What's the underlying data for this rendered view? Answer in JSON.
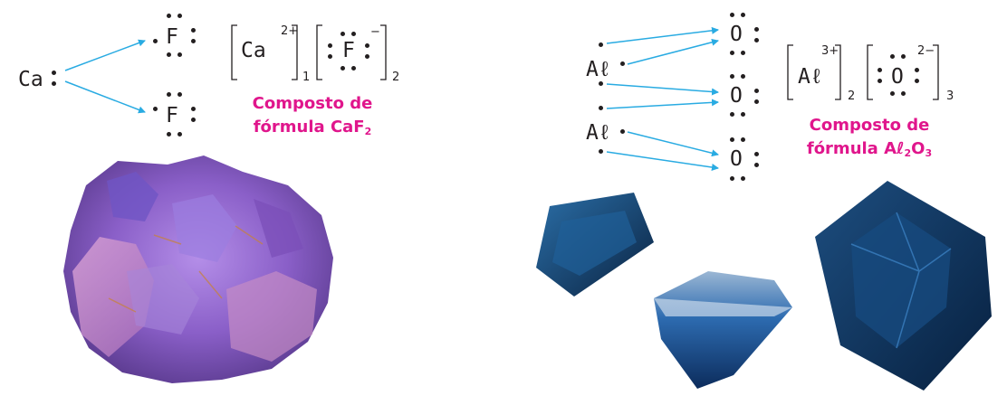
{
  "left": {
    "ca": "Ca",
    "f_top": "F",
    "f_bottom": "F",
    "bracket_ca": "Ca",
    "bracket_ca_charge": "2+",
    "bracket_ca_count": "1",
    "bracket_f": "F",
    "bracket_f_charge": "−",
    "bracket_f_count": "2",
    "caption_line1": "Composto de",
    "caption_line2_prefix": "fórmula CaF",
    "caption_line2_sub": "2",
    "mineral_image": "fluorite-crystal-photo"
  },
  "right": {
    "al_top": "Aℓ",
    "al_bottom": "Aℓ",
    "o_top": "O",
    "o_mid": "O",
    "o_bottom": "O",
    "bracket_al": "Aℓ",
    "bracket_al_charge": "3+",
    "bracket_al_count": "2",
    "bracket_o": "O",
    "bracket_o_charge": "2−",
    "bracket_o_count": "3",
    "caption_line1": "Composto de",
    "caption_line2_prefix": "fórmula Aℓ",
    "caption_line2_sub1": "2",
    "caption_line2_mid": "O",
    "caption_line2_sub2": "3",
    "gem_image": "sapphire-gems-photo"
  },
  "colors": {
    "arrow": "#29abe2",
    "caption": "#e0168c",
    "text": "#231f20",
    "fluorite": "#8a5fc8",
    "sapphire": "#0f3a6b"
  }
}
